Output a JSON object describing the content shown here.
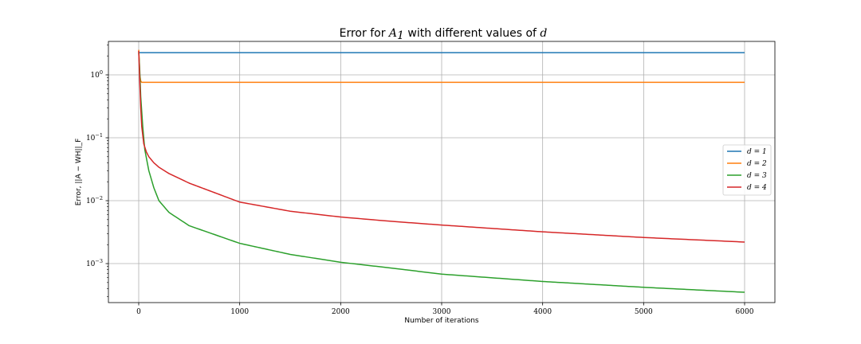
{
  "chart_data": {
    "type": "line",
    "title_prefix": "Error for ",
    "title_symbol": "A",
    "title_subscript": "1",
    "title_suffix": " with different values of ",
    "title_variable": "d",
    "xlabel": "Number of iterations",
    "ylabel": "Error, ||A − WH||_F",
    "y_scale": "log",
    "xlim": [
      -300,
      6300
    ],
    "ylim": [
      0.00024,
      3.4
    ],
    "grid": true,
    "legend_position": "center-right",
    "x_ticks": [
      0,
      1000,
      2000,
      3000,
      4000,
      5000,
      6000
    ],
    "x_tick_labels": [
      "0",
      "1000",
      "2000",
      "3000",
      "4000",
      "5000",
      "6000"
    ],
    "y_ticks": [
      0.001,
      0.01,
      0.1,
      1
    ],
    "y_tick_labels": [
      "10",
      "10",
      "10",
      "10"
    ],
    "y_tick_exponents": [
      "−3",
      "−2",
      "−1",
      "0"
    ],
    "series": [
      {
        "name": "d = 1",
        "color": "#1f77b4",
        "x": [
          0,
          5,
          10,
          20,
          50,
          100,
          6000
        ],
        "y": [
          2.3,
          2.25,
          2.25,
          2.25,
          2.25,
          2.25,
          2.25
        ]
      },
      {
        "name": "d = 2",
        "color": "#ff7f0e",
        "x": [
          0,
          5,
          10,
          20,
          30,
          50,
          100,
          6000
        ],
        "y": [
          2.5,
          1.8,
          1.0,
          0.8,
          0.76,
          0.76,
          0.76,
          0.76
        ]
      },
      {
        "name": "d = 3",
        "color": "#2ca02c",
        "x": [
          0,
          10,
          20,
          40,
          60,
          100,
          150,
          200,
          300,
          500,
          1000,
          1500,
          2000,
          2500,
          3000,
          4000,
          5000,
          6000
        ],
        "y": [
          2.3,
          1.2,
          0.45,
          0.15,
          0.065,
          0.03,
          0.016,
          0.01,
          0.0065,
          0.004,
          0.0021,
          0.0014,
          0.00105,
          0.00085,
          0.00068,
          0.00052,
          0.00042,
          0.00035
        ]
      },
      {
        "name": "d = 4",
        "color": "#d62728",
        "x": [
          0,
          10,
          20,
          30,
          50,
          75,
          100,
          150,
          200,
          300,
          500,
          1000,
          1500,
          2000,
          2500,
          3000,
          4000,
          5000,
          6000
        ],
        "y": [
          2.4,
          0.8,
          0.3,
          0.15,
          0.08,
          0.06,
          0.05,
          0.04,
          0.034,
          0.027,
          0.019,
          0.0095,
          0.0068,
          0.0055,
          0.0047,
          0.0041,
          0.0032,
          0.0026,
          0.0022
        ]
      }
    ]
  }
}
